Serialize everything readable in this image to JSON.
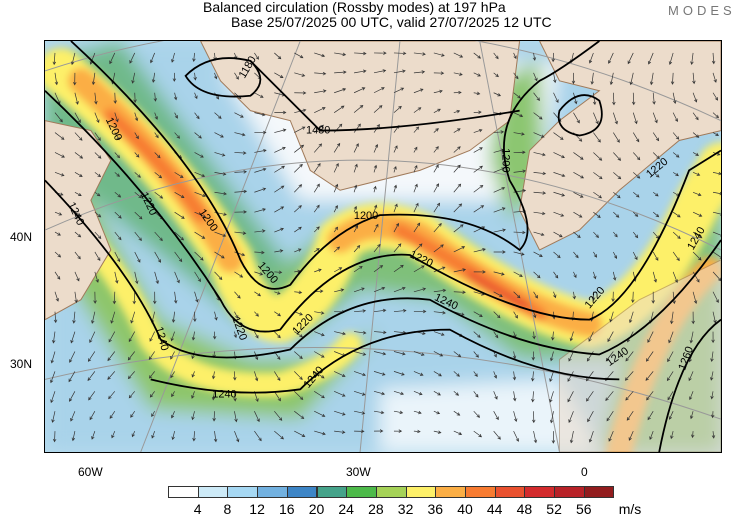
{
  "title": {
    "line1": "Balanced circulation (Rossby modes) at 197 hPa",
    "line2": "Base 25/07/2025 00 UTC, valid 27/07/2025 12 UTC"
  },
  "brand": "MODES",
  "axes": {
    "lat_labels": [
      "40N",
      "30N"
    ],
    "lon_labels": [
      "60W",
      "30W",
      "0"
    ]
  },
  "colorbar": {
    "unit": "m/s",
    "ticks": [
      "4",
      "8",
      "12",
      "16",
      "20",
      "24",
      "28",
      "32",
      "36",
      "40",
      "44",
      "48",
      "52",
      "56"
    ],
    "colors": [
      "#ffffff",
      "#cdeaf7",
      "#a6d8f3",
      "#72b1e0",
      "#3d85c6",
      "#45a38a",
      "#4dba4a",
      "#a5d257",
      "#fdf069",
      "#fbae45",
      "#f77b31",
      "#e9512f",
      "#d32b2d",
      "#b82228",
      "#921c1e"
    ]
  },
  "contour_labels": [
    "1180",
    "1480",
    "1200",
    "1220",
    "1240",
    "1200",
    "1200",
    "1220",
    "1240",
    "1240",
    "1220",
    "1240",
    "1200",
    "1220",
    "1240",
    "1200",
    "1220",
    "1240",
    "1220",
    "1240",
    "1260"
  ],
  "colors": {
    "land": "#ecdccb",
    "coast": "#a07a5a",
    "ocean_slow": "#cfe6f3",
    "grid": "#999999"
  }
}
